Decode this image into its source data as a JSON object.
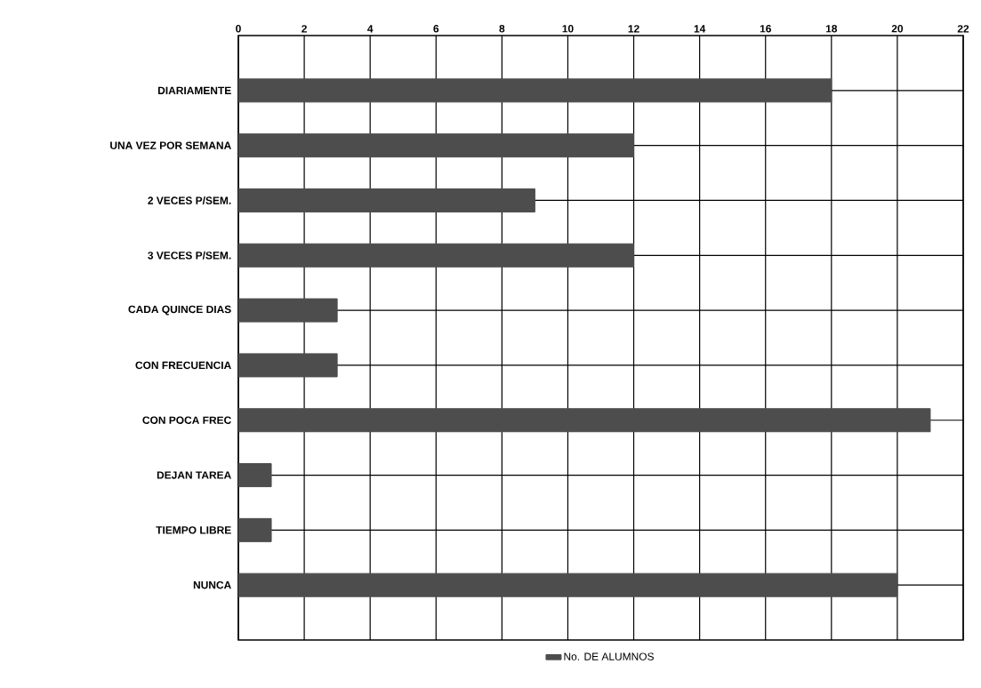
{
  "chart_data": {
    "type": "bar",
    "orientation": "horizontal",
    "categories": [
      "DIARIAMENTE",
      "UNA VEZ POR SEMANA",
      "2 VECES P/SEM.",
      "3 VECES P/SEM.",
      "CADA QUINCE DIAS",
      "CON FRECUENCIA",
      "CON POCA FREC",
      "DEJAN TAREA",
      "TIEMPO LIBRE",
      "NUNCA"
    ],
    "series": [
      {
        "name": "No. DE ALUMNOS",
        "color": "#4d4d4d",
        "values": [
          18,
          12,
          9,
          12,
          3,
          3,
          21,
          1,
          1,
          20
        ]
      }
    ],
    "xlim": [
      0,
      22
    ],
    "xticks": [
      0,
      2,
      4,
      6,
      8,
      10,
      12,
      14,
      16,
      18,
      20,
      22
    ],
    "grid": true,
    "legend": "bottom"
  }
}
